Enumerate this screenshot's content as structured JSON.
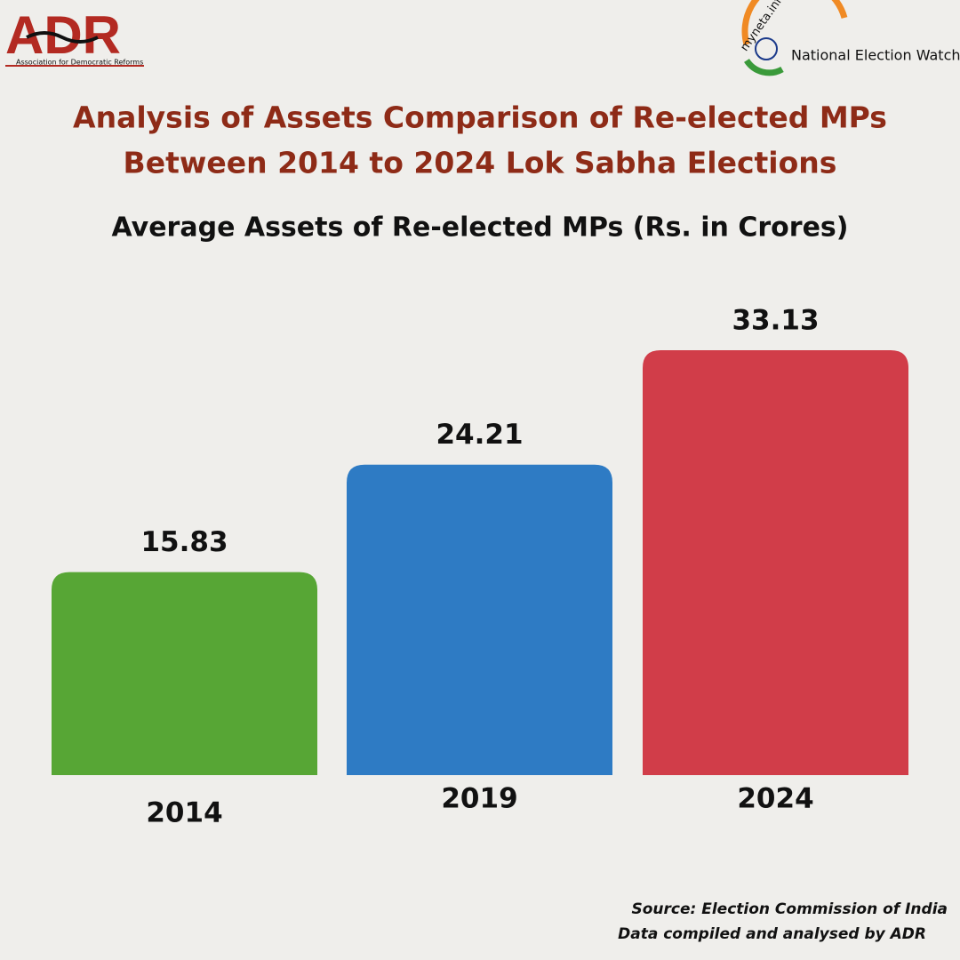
{
  "logos": {
    "adr": "ADR",
    "adr_full": "Association for Democratic Reforms",
    "myneta": "myneta.info",
    "new": "National Election Watch"
  },
  "chart_data": {
    "type": "bar",
    "title": "Analysis of Assets Comparison of Re-elected MPs Between 2014 to 2024 Lok Sabha Elections",
    "subtitle": "Average Assets of Re-elected MPs (Rs. in Crores)",
    "categories": [
      "2014",
      "2019",
      "2024"
    ],
    "values": [
      15.83,
      24.21,
      33.13
    ],
    "colors": [
      "#57a635",
      "#2e7bc4",
      "#d13d49"
    ]
  },
  "footer": {
    "source": "Source: Election Commission of India",
    "credit": "Data compiled and analysed by ADR"
  }
}
